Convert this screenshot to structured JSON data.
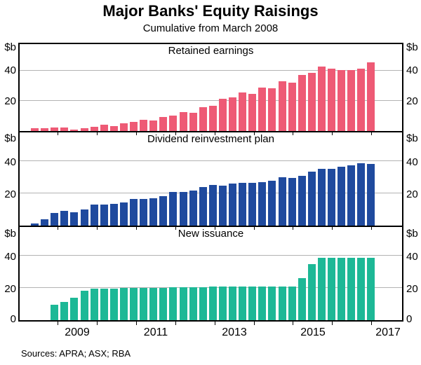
{
  "header": {
    "title": "Major Banks' Equity Raisings",
    "subtitle": "Cumulative from March 2008"
  },
  "footer": {
    "sources": "Sources: APRA; ASX; RBA"
  },
  "chart_data": {
    "type": "bar",
    "title": "Major Banks' Equity Raisings",
    "subtitle": "Cumulative from March 2008",
    "unit_label": "$b",
    "ylim": [
      0,
      58
    ],
    "gridlines": [
      20,
      40
    ],
    "grid": true,
    "ytick_labels": [
      "40",
      "20"
    ],
    "y0_label": "0",
    "xtick_labels": [
      "2009",
      "2011",
      "2013",
      "2015",
      "2017"
    ],
    "categories": [
      "Jun 2008",
      "Sep 2008",
      "Dec 2008",
      "Mar 2009",
      "Jun 2009",
      "Sep 2009",
      "Dec 2009",
      "Mar 2010",
      "Jun 2010",
      "Sep 2010",
      "Dec 2010",
      "Mar 2011",
      "Jun 2011",
      "Sep 2011",
      "Dec 2011",
      "Mar 2012",
      "Jun 2012",
      "Sep 2012",
      "Dec 2012",
      "Mar 2013",
      "Jun 2013",
      "Sep 2013",
      "Dec 2013",
      "Mar 2014",
      "Jun 2014",
      "Sep 2014",
      "Dec 2014",
      "Mar 2015",
      "Jun 2015",
      "Sep 2015",
      "Dec 2015",
      "Mar 2016",
      "Jun 2016",
      "Sep 2016",
      "Dec 2016"
    ],
    "panels": [
      {
        "title": "Retained earnings",
        "color": "#ee5a75",
        "values": [
          2,
          2,
          2.5,
          2.5,
          1,
          2,
          3,
          4,
          3.5,
          5,
          6,
          7.5,
          7,
          9.5,
          10.5,
          12.5,
          12,
          16,
          17,
          21.5,
          22.5,
          25.5,
          25,
          29,
          28.5,
          33,
          32.5,
          37.5,
          39,
          43,
          41.5,
          40.5,
          40.5,
          41.5,
          46
        ]
      },
      {
        "title": "Dividend reinvestment plan",
        "color": "#1f4a9e",
        "values": [
          1.5,
          4,
          8,
          9,
          8.5,
          10,
          13,
          13,
          13.5,
          14.5,
          16.5,
          16.5,
          17,
          18.5,
          21,
          21,
          22,
          24,
          25.5,
          25,
          26,
          26.5,
          26.5,
          27,
          28,
          30,
          29.5,
          31,
          33.5,
          35.5,
          35.5,
          36.5,
          37.5,
          39,
          38.5
        ]
      },
      {
        "title": "New issuance",
        "color": "#1db896",
        "values": [
          0,
          0,
          9.5,
          11.5,
          14,
          18.5,
          19.5,
          19.5,
          19.5,
          20,
          20,
          20,
          20,
          20,
          20.5,
          20.5,
          20.5,
          20.5,
          21,
          21,
          21,
          21,
          21,
          21,
          21,
          21,
          21,
          26,
          35,
          39,
          39,
          39,
          39,
          39,
          39
        ]
      }
    ]
  }
}
